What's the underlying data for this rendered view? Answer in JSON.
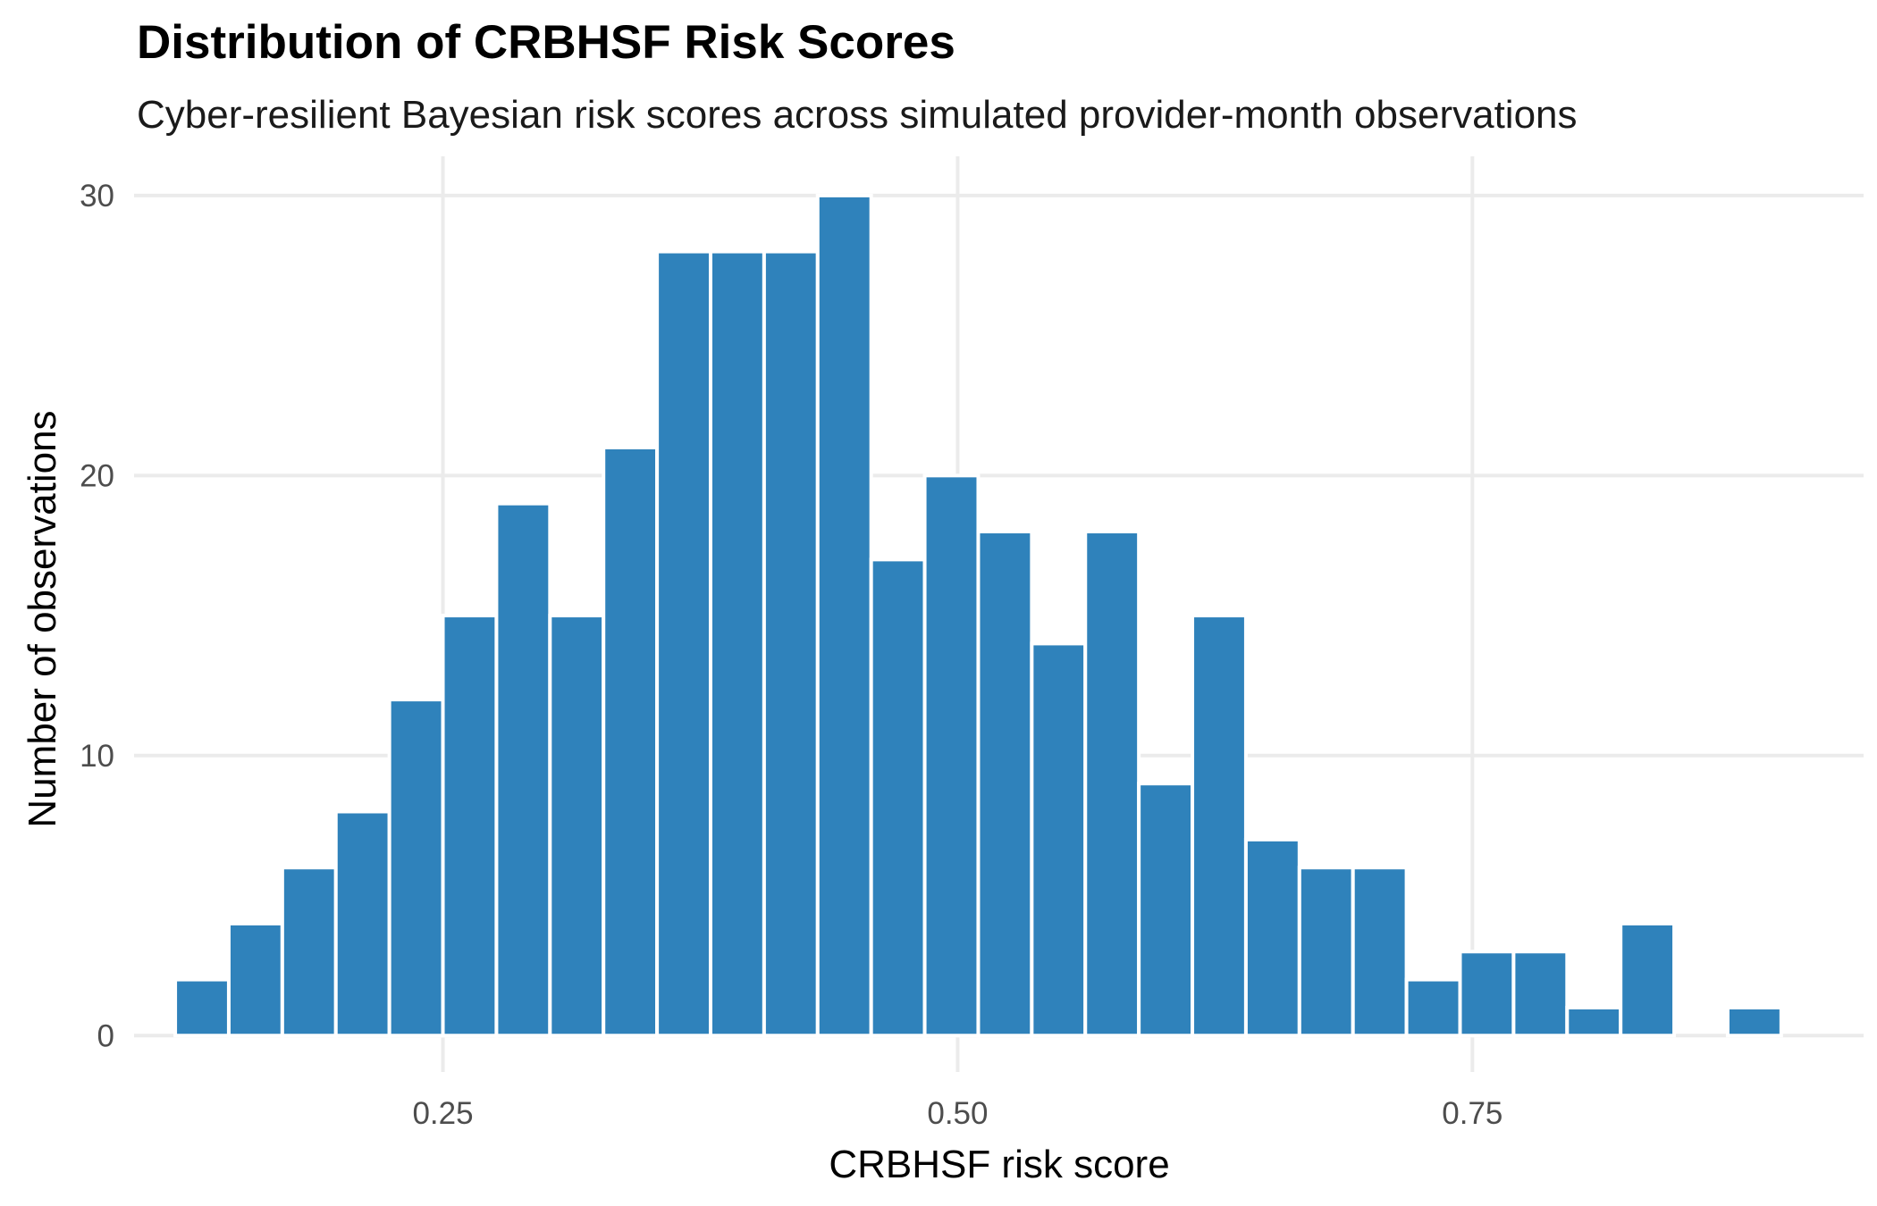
{
  "title": "Distribution of CRBHSF Risk Scores",
  "subtitle": "Cyber-resilient Bayesian risk scores across simulated provider-month observations",
  "chart_data": {
    "type": "bar",
    "title": "Distribution of CRBHSF Risk Scores",
    "subtitle": "Cyber-resilient Bayesian risk scores across simulated provider-month observations",
    "xlabel": "CRBHSF risk score",
    "ylabel": "Number of observations",
    "bin_width": 0.026,
    "bin_starts": [
      0.12,
      0.146,
      0.172,
      0.198,
      0.224,
      0.25,
      0.276,
      0.302,
      0.328,
      0.354,
      0.38,
      0.406,
      0.432,
      0.458,
      0.484,
      0.51,
      0.536,
      0.562,
      0.588,
      0.614,
      0.64,
      0.666,
      0.692,
      0.718,
      0.744,
      0.77,
      0.796,
      0.822,
      0.848,
      0.874,
      0.9
    ],
    "values": [
      2,
      4,
      6,
      8,
      12,
      15,
      19,
      15,
      21,
      28,
      28,
      28,
      30,
      17,
      20,
      18,
      14,
      18,
      9,
      15,
      7,
      6,
      6,
      2,
      3,
      3,
      1,
      4,
      0,
      1
    ],
    "xlim": [
      0.1,
      0.94
    ],
    "ylim": [
      -1.3,
      31.4
    ],
    "x_ticks": [
      0.25,
      0.5,
      0.75
    ],
    "x_tick_labels": [
      "0.25",
      "0.50",
      "0.75"
    ],
    "y_ticks": [
      0,
      10,
      20,
      30
    ],
    "y_tick_labels": [
      "0",
      "10",
      "20",
      "30"
    ],
    "grid": true,
    "legend": "none",
    "colors": {
      "bar_fill": "#2f82bb",
      "bar_outline": "#ffffff",
      "grid": "#ebebeb",
      "background": "#ffffff"
    }
  }
}
